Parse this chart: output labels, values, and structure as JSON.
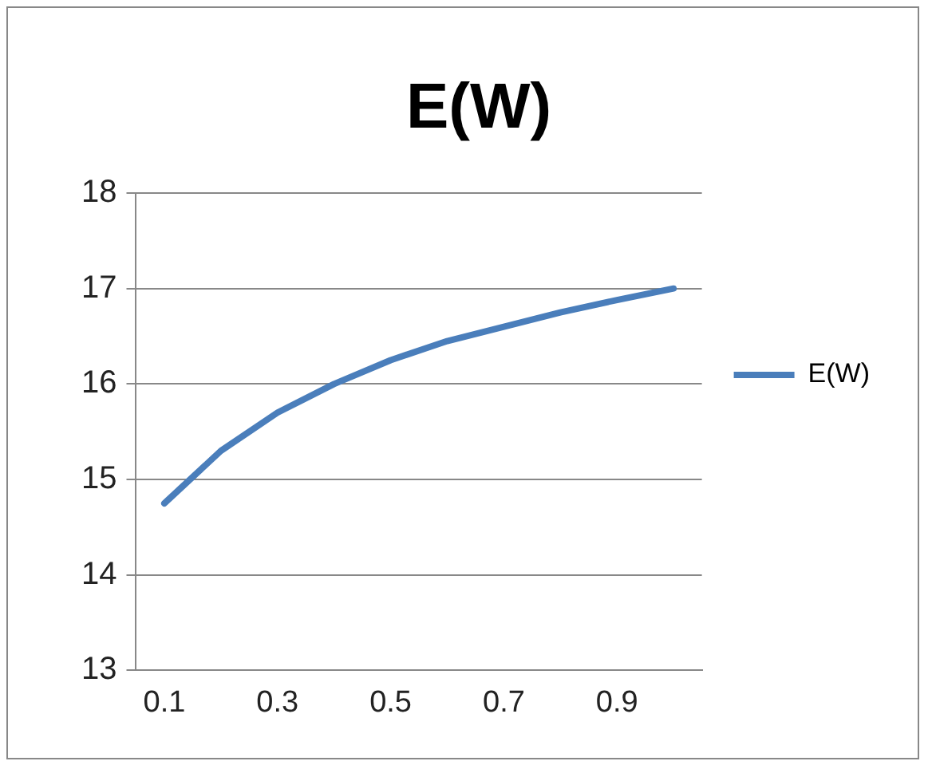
{
  "chart_data": {
    "type": "line",
    "title": "E(W)",
    "categories": [
      "0.1",
      null,
      "0.3",
      null,
      "0.5",
      null,
      "0.7",
      null,
      "0.9",
      null
    ],
    "series": [
      {
        "name": "E(W)",
        "color": "#4a7ebb",
        "values": [
          14.75,
          15.3,
          15.7,
          16.0,
          16.25,
          16.45,
          16.6,
          16.75,
          16.88,
          17.0
        ]
      }
    ],
    "ylim": [
      13,
      18
    ],
    "yticks": [
      13,
      14,
      15,
      16,
      17,
      18
    ],
    "grid": "y",
    "legend": "right",
    "marker": "none",
    "line_style": "solid"
  }
}
